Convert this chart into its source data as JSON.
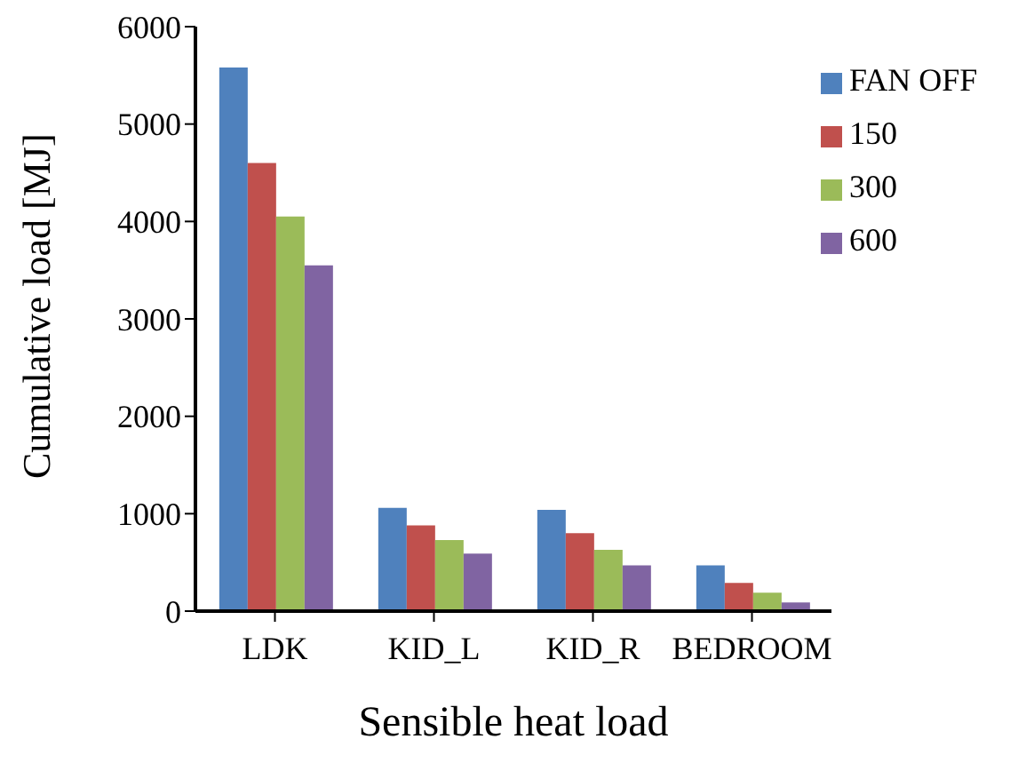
{
  "chart_data": {
    "type": "bar",
    "xlabel": "Sensible heat load",
    "ylabel": "Cumulative load [MJ]",
    "categories": [
      "LDK",
      "KID_L",
      "KID_R",
      "BEDROOM"
    ],
    "series": [
      {
        "name": "FAN OFF",
        "color": "#4f81bd",
        "values": [
          5580,
          1060,
          1040,
          470
        ]
      },
      {
        "name": "150",
        "color": "#c0504d",
        "values": [
          4600,
          880,
          800,
          290
        ]
      },
      {
        "name": "300",
        "color": "#9bbb59",
        "values": [
          4050,
          730,
          630,
          190
        ]
      },
      {
        "name": "600",
        "color": "#8064a2",
        "values": [
          3550,
          590,
          470,
          90
        ]
      }
    ],
    "ylim": [
      0,
      6000
    ],
    "yticks": [
      0,
      1000,
      2000,
      3000,
      4000,
      5000,
      6000
    ],
    "grid": false,
    "legend": "top right"
  }
}
